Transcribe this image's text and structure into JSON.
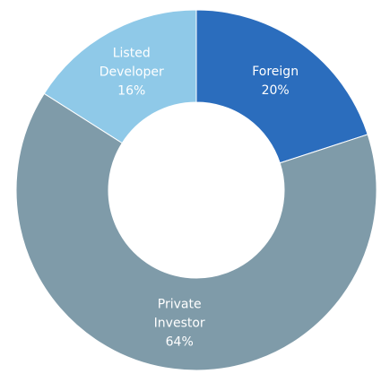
{
  "chart_data": {
    "type": "donut",
    "categories": [
      "Foreign",
      "Private Investor",
      "Listed Developer"
    ],
    "values": [
      20,
      64,
      16
    ],
    "value_labels": [
      "20%",
      "64%",
      "16%"
    ],
    "colors": [
      "#2b6dbd",
      "#7f9ba9",
      "#8fc9e8"
    ]
  }
}
